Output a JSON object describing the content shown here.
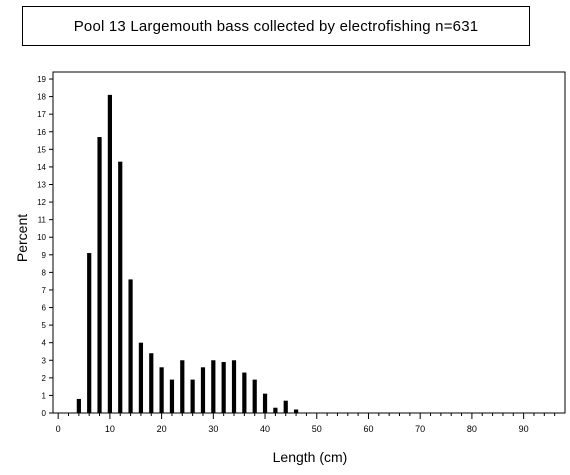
{
  "chart_data": {
    "type": "bar",
    "title": "Pool 13 Largemouth bass collected by electrofishing n=631",
    "xlabel": "Length (cm)",
    "ylabel": "Percent",
    "xlim": [
      -1,
      98
    ],
    "ylim": [
      0,
      19.4
    ],
    "x_ticks": [
      0,
      10,
      20,
      30,
      40,
      50,
      60,
      70,
      80,
      90
    ],
    "y_ticks": [
      0,
      1,
      2,
      3,
      4,
      5,
      6,
      7,
      8,
      9,
      10,
      11,
      12,
      13,
      14,
      15,
      16,
      17,
      18,
      19
    ],
    "x": [
      4,
      6,
      8,
      10,
      12,
      14,
      16,
      18,
      20,
      22,
      24,
      26,
      28,
      30,
      32,
      34,
      36,
      38,
      40,
      42,
      44,
      46
    ],
    "values": [
      0.8,
      9.1,
      15.7,
      18.1,
      14.3,
      7.6,
      4.0,
      3.4,
      2.6,
      1.9,
      3.0,
      1.9,
      2.6,
      3.0,
      2.9,
      3.0,
      2.3,
      1.9,
      1.1,
      0.3,
      0.7,
      0.2
    ],
    "grid": false,
    "color": "#000000"
  }
}
